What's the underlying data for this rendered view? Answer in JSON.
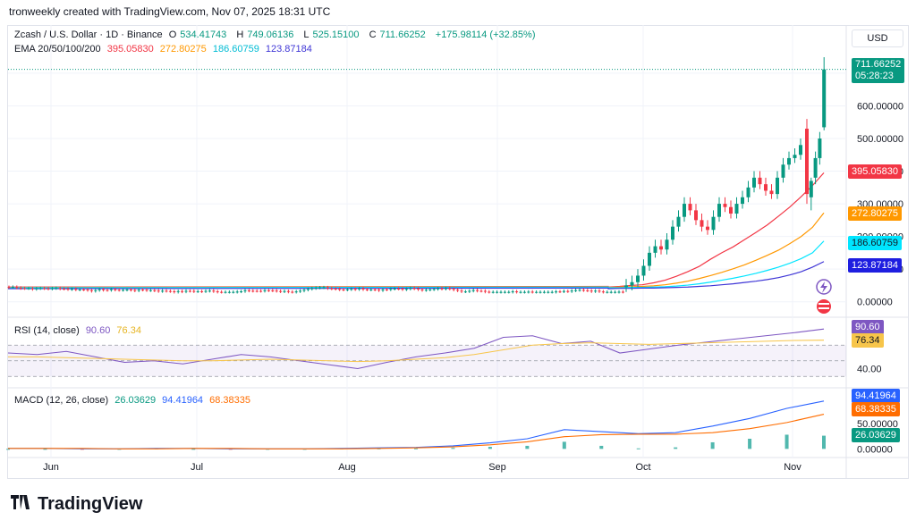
{
  "caption": "tronweekly created with TradingView.com, Nov 07, 2025 18:31 UTC",
  "currency": "USD",
  "brand": "TradingView",
  "brand_icon": "tradingview-logo-icon",
  "legend": {
    "symbol": "Zcash / U.S. Dollar · 1D · Binance",
    "open_label": "O",
    "open": "534.41743",
    "high_label": "H",
    "high": "749.06136",
    "low_label": "L",
    "low": "525.15100",
    "close_label": "C",
    "close": "711.66252",
    "change": "+175.98114 (+32.85%)",
    "ema_label": "EMA 20/50/100/200",
    "ema20": "395.05830",
    "ema50": "272.80275",
    "ema100": "186.60759",
    "ema200": "123.87184"
  },
  "tags": {
    "price": "711.66252",
    "countdown": "05:28:23",
    "ema20": "395.05830",
    "ema50": "272.80275",
    "ema100": "186.60759",
    "ema200": "123.87184",
    "rsi": "90.60",
    "rsi_ma": "76.34",
    "macd": "94.41964",
    "signal": "68.38335",
    "hist": "26.03629"
  },
  "rsi_legend": {
    "label": "RSI (14, close)",
    "rsi": "90.60",
    "ma": "76.34"
  },
  "macd_legend": {
    "label": "MACD (12, 26, close)",
    "hist": "26.03629",
    "macd": "94.41964",
    "signal": "68.38335"
  },
  "colors": {
    "up": "#089981",
    "down": "#f23645",
    "ema20": "#f23645",
    "ema50": "#ff9800",
    "ema100": "#00e5ff",
    "ema200": "#3f36d6",
    "rsi": "#7e57c2",
    "rsi_ma": "#f7c54a",
    "macd": "#2962ff",
    "signal": "#ff6d00"
  },
  "chart_data": [
    {
      "type": "candlestick",
      "title": "Zcash / U.S. Dollar · 1D · Binance",
      "x_ticks": [
        "Jun",
        "Jul",
        "Aug",
        "Sep",
        "Oct",
        "Nov"
      ],
      "y_ticks": [
        "0.00000",
        "100.00000",
        "200.00000",
        "300.00000",
        "400.00000",
        "500.00000",
        "600.00000",
        "700.00000"
      ],
      "ylim": [
        -20,
        760
      ],
      "series": [
        {
          "name": "EMA 20",
          "values": [
            45,
            47,
            50,
            52,
            58,
            66,
            78,
            92,
            108,
            130,
            150,
            168,
            190,
            212,
            235,
            262,
            290,
            322,
            356,
            395
          ]
        },
        {
          "name": "EMA 50",
          "values": [
            44,
            45,
            46,
            47,
            49,
            52,
            57,
            63,
            71,
            80,
            90,
            101,
            113,
            127,
            142,
            158,
            178,
            200,
            228,
            272
          ]
        },
        {
          "name": "EMA 100",
          "values": [
            43,
            43,
            44,
            44,
            45,
            46,
            48,
            51,
            55,
            60,
            66,
            72,
            79,
            87,
            96,
            106,
            118,
            132,
            150,
            186
          ]
        },
        {
          "name": "EMA 200",
          "values": [
            40,
            41,
            41,
            42,
            42,
            43,
            44,
            45,
            47,
            49,
            52,
            55,
            59,
            63,
            68,
            74,
            82,
            92,
            106,
            123
          ]
        }
      ],
      "candles": [
        {
          "o": 530,
          "h": 560,
          "l": 300,
          "c": 330
        },
        {
          "o": 320,
          "h": 380,
          "l": 280,
          "c": 370
        },
        {
          "o": 380,
          "h": 460,
          "l": 360,
          "c": 440
        },
        {
          "o": 440,
          "h": 520,
          "l": 420,
          "c": 500
        },
        {
          "o": 534.41743,
          "h": 749.06136,
          "l": 525.151,
          "c": 711.66252
        }
      ]
    },
    {
      "type": "line",
      "title": "RSI (14, close)",
      "series": [
        {
          "name": "RSI",
          "values": [
            60,
            58,
            62,
            55,
            48,
            50,
            46,
            52,
            58,
            55,
            50,
            45,
            40,
            48,
            55,
            60,
            66,
            80,
            82,
            72,
            75,
            60,
            65,
            70,
            74,
            78,
            82,
            86,
            90.6
          ]
        },
        {
          "name": "RSI MA",
          "values": [
            55,
            55,
            54,
            53,
            52,
            51,
            50,
            50,
            51,
            52,
            51,
            50,
            49,
            50,
            52,
            54,
            58,
            64,
            70,
            72,
            73,
            72,
            71,
            72,
            73,
            74,
            75,
            76,
            76.34
          ]
        }
      ],
      "y_ticks": [
        "40.00"
      ],
      "ylim": [
        20,
        100
      ]
    },
    {
      "type": "line",
      "title": "MACD (12, 26, close)",
      "series": [
        {
          "name": "MACD",
          "values": [
            1,
            1,
            0,
            0,
            1,
            1,
            0,
            0,
            0,
            1,
            2,
            3,
            6,
            12,
            20,
            38,
            34,
            30,
            32,
            45,
            60,
            80,
            94.41964
          ]
        },
        {
          "name": "Signal",
          "values": [
            1,
            1,
            1,
            0,
            0,
            1,
            1,
            0,
            0,
            0,
            1,
            2,
            4,
            8,
            14,
            24,
            28,
            29,
            29,
            32,
            40,
            52,
            68.38335
          ]
        },
        {
          "name": "Histogram",
          "values": [
            0,
            0,
            -1,
            0,
            1,
            0,
            -1,
            0,
            0,
            1,
            1,
            1,
            2,
            4,
            6,
            14,
            6,
            1,
            3,
            13,
            20,
            28,
            26.03629
          ]
        }
      ],
      "y_ticks": [
        "0.00000",
        "50.00000"
      ],
      "ylim": [
        -10,
        110
      ]
    }
  ]
}
